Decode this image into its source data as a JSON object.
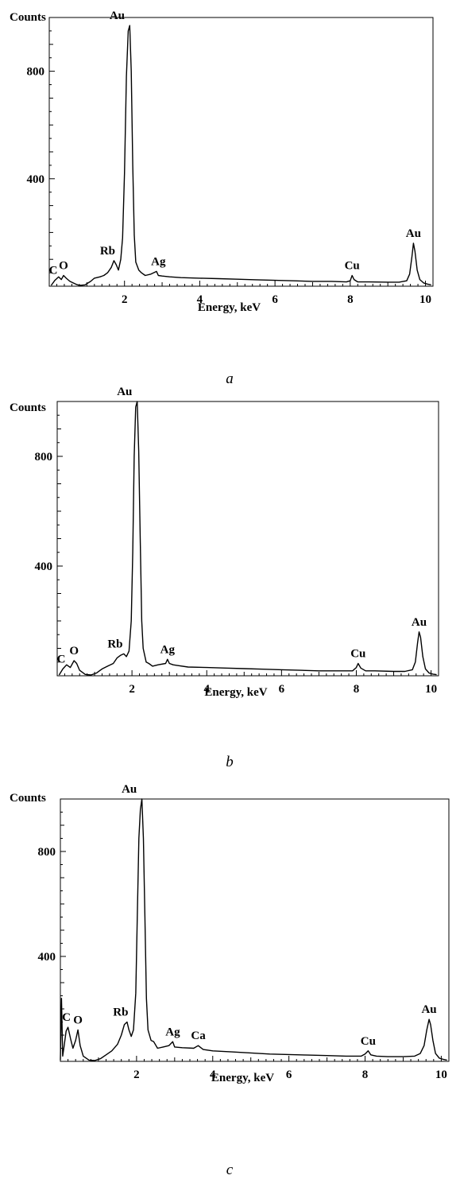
{
  "chart_data": [
    {
      "type": "line",
      "caption": "a",
      "xlabel": "Energy, keV",
      "ylabel": "Counts",
      "xlim": [
        0,
        10.2
      ],
      "ylim": [
        0,
        1000
      ],
      "xticks": [
        2,
        4,
        6,
        8,
        10
      ],
      "yticks": [
        400,
        800
      ],
      "series": [
        {
          "points": [
            [
              0.05,
              3
            ],
            [
              0.15,
              22
            ],
            [
              0.25,
              35
            ],
            [
              0.32,
              25
            ],
            [
              0.38,
              40
            ],
            [
              0.45,
              30
            ],
            [
              0.55,
              18
            ],
            [
              0.7,
              8
            ],
            [
              0.8,
              3
            ],
            [
              0.95,
              5
            ],
            [
              1.1,
              18
            ],
            [
              1.2,
              30
            ],
            [
              1.35,
              35
            ],
            [
              1.45,
              40
            ],
            [
              1.55,
              50
            ],
            [
              1.65,
              70
            ],
            [
              1.72,
              95
            ],
            [
              1.78,
              80
            ],
            [
              1.84,
              60
            ],
            [
              1.9,
              100
            ],
            [
              1.95,
              180
            ],
            [
              2.0,
              420
            ],
            [
              2.05,
              780
            ],
            [
              2.1,
              950
            ],
            [
              2.14,
              970
            ],
            [
              2.18,
              800
            ],
            [
              2.22,
              450
            ],
            [
              2.26,
              190
            ],
            [
              2.3,
              90
            ],
            [
              2.38,
              60
            ],
            [
              2.45,
              50
            ],
            [
              2.55,
              40
            ],
            [
              2.7,
              45
            ],
            [
              2.85,
              55
            ],
            [
              2.9,
              40
            ],
            [
              3.0,
              38
            ],
            [
              3.2,
              35
            ],
            [
              3.5,
              32
            ],
            [
              4.0,
              30
            ],
            [
              4.5,
              28
            ],
            [
              5.0,
              26
            ],
            [
              5.5,
              24
            ],
            [
              6.0,
              22
            ],
            [
              6.5,
              20
            ],
            [
              7.0,
              18
            ],
            [
              7.5,
              18
            ],
            [
              7.9,
              16
            ],
            [
              8.0,
              20
            ],
            [
              8.05,
              40
            ],
            [
              8.1,
              25
            ],
            [
              8.2,
              16
            ],
            [
              8.5,
              16
            ],
            [
              9.0,
              15
            ],
            [
              9.3,
              15
            ],
            [
              9.5,
              20
            ],
            [
              9.58,
              45
            ],
            [
              9.64,
              110
            ],
            [
              9.68,
              160
            ],
            [
              9.72,
              130
            ],
            [
              9.78,
              60
            ],
            [
              9.85,
              25
            ],
            [
              9.95,
              12
            ],
            [
              10.05,
              8
            ],
            [
              10.15,
              5
            ]
          ]
        }
      ],
      "annotations": [
        {
          "text": "Au",
          "x": 2.1,
          "y": 970
        },
        {
          "text": "C",
          "x": 0.15,
          "y": 22
        },
        {
          "text": "O",
          "x": 0.38,
          "y": 40
        },
        {
          "text": "Rb",
          "x": 1.72,
          "y": 95
        },
        {
          "text": "Ag",
          "x": 2.9,
          "y": 55
        },
        {
          "text": "Cu",
          "x": 8.05,
          "y": 40
        },
        {
          "text": "Au",
          "x": 9.68,
          "y": 160
        }
      ]
    },
    {
      "type": "line",
      "caption": "b",
      "xlabel": "Energy, keV",
      "ylabel": "Counts",
      "xlim": [
        0,
        10.2
      ],
      "ylim": [
        0,
        1000
      ],
      "xticks": [
        2,
        4,
        6,
        8,
        10
      ],
      "yticks": [
        400,
        800
      ],
      "series": [
        {
          "points": [
            [
              0.05,
              3
            ],
            [
              0.15,
              25
            ],
            [
              0.25,
              40
            ],
            [
              0.35,
              30
            ],
            [
              0.45,
              55
            ],
            [
              0.52,
              45
            ],
            [
              0.6,
              20
            ],
            [
              0.75,
              5
            ],
            [
              0.9,
              3
            ],
            [
              1.05,
              10
            ],
            [
              1.2,
              25
            ],
            [
              1.35,
              35
            ],
            [
              1.5,
              45
            ],
            [
              1.6,
              65
            ],
            [
              1.7,
              75
            ],
            [
              1.78,
              80
            ],
            [
              1.85,
              70
            ],
            [
              1.92,
              90
            ],
            [
              1.98,
              200
            ],
            [
              2.02,
              450
            ],
            [
              2.06,
              800
            ],
            [
              2.1,
              980
            ],
            [
              2.14,
              1000
            ],
            [
              2.18,
              820
            ],
            [
              2.22,
              500
            ],
            [
              2.26,
              200
            ],
            [
              2.3,
              100
            ],
            [
              2.38,
              50
            ],
            [
              2.45,
              45
            ],
            [
              2.55,
              35
            ],
            [
              2.7,
              40
            ],
            [
              2.9,
              45
            ],
            [
              2.95,
              60
            ],
            [
              3.0,
              45
            ],
            [
              3.1,
              40
            ],
            [
              3.2,
              38
            ],
            [
              3.5,
              32
            ],
            [
              4.0,
              30
            ],
            [
              4.5,
              28
            ],
            [
              5.0,
              26
            ],
            [
              5.5,
              24
            ],
            [
              6.0,
              22
            ],
            [
              6.5,
              20
            ],
            [
              7.0,
              18
            ],
            [
              7.5,
              18
            ],
            [
              7.9,
              18
            ],
            [
              8.0,
              30
            ],
            [
              8.05,
              45
            ],
            [
              8.12,
              28
            ],
            [
              8.25,
              18
            ],
            [
              8.5,
              18
            ],
            [
              9.0,
              16
            ],
            [
              9.3,
              16
            ],
            [
              9.5,
              22
            ],
            [
              9.58,
              50
            ],
            [
              9.64,
              120
            ],
            [
              9.68,
              160
            ],
            [
              9.72,
              140
            ],
            [
              9.78,
              70
            ],
            [
              9.85,
              25
            ],
            [
              9.95,
              10
            ],
            [
              10.05,
              6
            ],
            [
              10.15,
              4
            ]
          ]
        }
      ],
      "annotations": [
        {
          "text": "Au",
          "x": 2.1,
          "y": 1000
        },
        {
          "text": "C",
          "x": 0.15,
          "y": 25
        },
        {
          "text": "O",
          "x": 0.45,
          "y": 55
        },
        {
          "text": "Rb",
          "x": 1.72,
          "y": 80
        },
        {
          "text": "Ag",
          "x": 2.95,
          "y": 60
        },
        {
          "text": "Cu",
          "x": 8.05,
          "y": 45
        },
        {
          "text": "Au",
          "x": 9.68,
          "y": 160
        }
      ]
    },
    {
      "type": "line",
      "caption": "c",
      "xlabel": "Energy, keV",
      "ylabel": "Counts",
      "xlim": [
        0,
        10.2
      ],
      "ylim": [
        0,
        1000
      ],
      "xticks": [
        2,
        4,
        6,
        8,
        10
      ],
      "yticks": [
        400,
        800
      ],
      "series": [
        {
          "points": [
            [
              0.0,
              5
            ],
            [
              0.03,
              240
            ],
            [
              0.06,
              20
            ],
            [
              0.1,
              60
            ],
            [
              0.15,
              115
            ],
            [
              0.2,
              130
            ],
            [
              0.27,
              85
            ],
            [
              0.33,
              50
            ],
            [
              0.4,
              80
            ],
            [
              0.46,
              120
            ],
            [
              0.52,
              60
            ],
            [
              0.6,
              20
            ],
            [
              0.75,
              5
            ],
            [
              0.9,
              3
            ],
            [
              1.05,
              10
            ],
            [
              1.2,
              25
            ],
            [
              1.35,
              40
            ],
            [
              1.5,
              65
            ],
            [
              1.6,
              100
            ],
            [
              1.68,
              140
            ],
            [
              1.75,
              150
            ],
            [
              1.8,
              120
            ],
            [
              1.86,
              95
            ],
            [
              1.92,
              120
            ],
            [
              1.98,
              260
            ],
            [
              2.02,
              550
            ],
            [
              2.06,
              850
            ],
            [
              2.1,
              960
            ],
            [
              2.14,
              1000
            ],
            [
              2.18,
              850
            ],
            [
              2.22,
              550
            ],
            [
              2.26,
              240
            ],
            [
              2.3,
              120
            ],
            [
              2.38,
              80
            ],
            [
              2.45,
              75
            ],
            [
              2.55,
              50
            ],
            [
              2.7,
              55
            ],
            [
              2.85,
              60
            ],
            [
              2.95,
              75
            ],
            [
              3.0,
              55
            ],
            [
              3.2,
              52
            ],
            [
              3.5,
              50
            ],
            [
              3.62,
              60
            ],
            [
              3.75,
              45
            ],
            [
              4.0,
              40
            ],
            [
              4.5,
              36
            ],
            [
              5.0,
              32
            ],
            [
              5.5,
              28
            ],
            [
              6.0,
              26
            ],
            [
              6.5,
              24
            ],
            [
              7.0,
              22
            ],
            [
              7.5,
              20
            ],
            [
              7.9,
              20
            ],
            [
              8.0,
              28
            ],
            [
              8.08,
              40
            ],
            [
              8.15,
              25
            ],
            [
              8.3,
              20
            ],
            [
              8.6,
              18
            ],
            [
              9.0,
              18
            ],
            [
              9.3,
              20
            ],
            [
              9.45,
              30
            ],
            [
              9.55,
              60
            ],
            [
              9.62,
              120
            ],
            [
              9.68,
              160
            ],
            [
              9.72,
              140
            ],
            [
              9.78,
              80
            ],
            [
              9.85,
              30
            ],
            [
              9.95,
              12
            ],
            [
              10.05,
              8
            ],
            [
              10.15,
              5
            ]
          ]
        }
      ],
      "annotations": [
        {
          "text": "Au",
          "x": 2.1,
          "y": 1000
        },
        {
          "text": "C",
          "x": 0.2,
          "y": 130
        },
        {
          "text": "O",
          "x": 0.46,
          "y": 120
        },
        {
          "text": "Rb",
          "x": 1.75,
          "y": 150
        },
        {
          "text": "Ag",
          "x": 2.95,
          "y": 75
        },
        {
          "text": "Ca",
          "x": 3.62,
          "y": 60
        },
        {
          "text": "Cu",
          "x": 8.08,
          "y": 40
        },
        {
          "text": "Au",
          "x": 9.68,
          "y": 160
        }
      ]
    }
  ]
}
